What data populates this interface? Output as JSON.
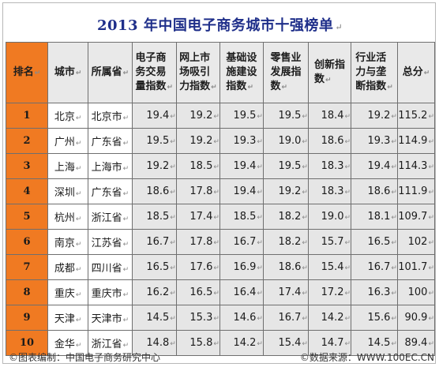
{
  "title": "2013 年中国电子商务城市十强榜单",
  "para_mark": "↵",
  "headers": {
    "rank": "排名",
    "city": "城市",
    "province": "所属省",
    "ecommerce_volume_lines": [
      "电子商",
      "务交易",
      "量指数"
    ],
    "market_attraction_lines": [
      "网上市",
      "场吸引",
      "力指数"
    ],
    "infrastructure_lines": [
      "基础设",
      "施建设",
      "指数"
    ],
    "retail_lines": [
      "零售业",
      "发展指",
      "数"
    ],
    "innovation_lines": [
      "创新指",
      "数"
    ],
    "industry_activity_lines": [
      "行业活",
      "力与垄",
      "断指数"
    ],
    "total": "总分"
  },
  "rows": [
    {
      "rank": "1",
      "city": "北京",
      "province": "北京市",
      "v1": "19.4",
      "v2": "19.2",
      "v3": "19.5",
      "v4": "19.5",
      "v5": "18.4",
      "v6": "19.2",
      "total": "115.2"
    },
    {
      "rank": "2",
      "city": "广州",
      "province": "广东省",
      "v1": "19.5",
      "v2": "19.2",
      "v3": "19.3",
      "v4": "19.0",
      "v5": "18.6",
      "v6": "19.3",
      "total": "114.9"
    },
    {
      "rank": "3",
      "city": "上海",
      "province": "上海市",
      "v1": "19.2",
      "v2": "18.5",
      "v3": "19.4",
      "v4": "19.5",
      "v5": "18.3",
      "v6": "19.4",
      "total": "114.3"
    },
    {
      "rank": "4",
      "city": "深圳",
      "province": "广东省",
      "v1": "18.6",
      "v2": "17.8",
      "v3": "19.4",
      "v4": "19.2",
      "v5": "18.3",
      "v6": "18.6",
      "total": "111.9"
    },
    {
      "rank": "5",
      "city": "杭州",
      "province": "浙江省",
      "v1": "18.5",
      "v2": "17.4",
      "v3": "18.5",
      "v4": "18.2",
      "v5": "19.0",
      "v6": "18.1",
      "total": "109.7"
    },
    {
      "rank": "6",
      "city": "南京",
      "province": "江苏省",
      "v1": "16.7",
      "v2": "17.8",
      "v3": "16.7",
      "v4": "18.2",
      "v5": "15.7",
      "v6": "16.5",
      "total": "102"
    },
    {
      "rank": "7",
      "city": "成都",
      "province": "四川省",
      "v1": "16.5",
      "v2": "17.6",
      "v3": "16.9",
      "v4": "18.6",
      "v5": "15.4",
      "v6": "16.7",
      "total": "101.7"
    },
    {
      "rank": "8",
      "city": "重庆",
      "province": "重庆市",
      "v1": "16.2",
      "v2": "16.5",
      "v3": "16.4",
      "v4": "17.4",
      "v5": "17.2",
      "v6": "16.3",
      "total": "100"
    },
    {
      "rank": "9",
      "city": "天津",
      "province": "天津市",
      "v1": "14.5",
      "v2": "15.3",
      "v3": "14.6",
      "v4": "16.7",
      "v5": "14.2",
      "v6": "15.6",
      "total": "90.9"
    },
    {
      "rank": "10",
      "city": "金华",
      "province": "浙江省",
      "v1": "14.8",
      "v2": "15.8",
      "v3": "14.2",
      "v4": "15.4",
      "v5": "14.7",
      "v6": "14.5",
      "total": "89.4"
    }
  ],
  "footer": {
    "left": "©图表编制：中国电子商务研究中心",
    "right": "©数据来源：WWW.100EC.CN"
  },
  "colors": {
    "title": "#1f2f8a",
    "rank_column": "#f07a22",
    "header_bg": "#e9e9e9",
    "value_bg": "#e6e6e6"
  }
}
